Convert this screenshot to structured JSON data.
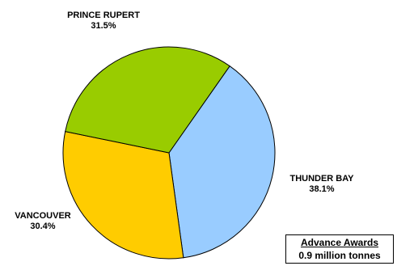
{
  "chart_data": {
    "type": "pie",
    "slices": [
      {
        "label": "THUNDER BAY",
        "value": 38.1,
        "value_label": "38.1%",
        "color": "#99ccff"
      },
      {
        "label": "VANCOUVER",
        "value": 30.4,
        "value_label": "30.4%",
        "color": "#ffcc00"
      },
      {
        "label": "PRINCE RUPERT",
        "value": 31.5,
        "value_label": "31.5%",
        "color": "#99cc00"
      }
    ],
    "start_angle_deg": 35,
    "direction": "clockwise",
    "outline_color": "#000000"
  },
  "note_box": {
    "title": "Advance Awards",
    "subtitle": "0.9 million tonnes"
  }
}
